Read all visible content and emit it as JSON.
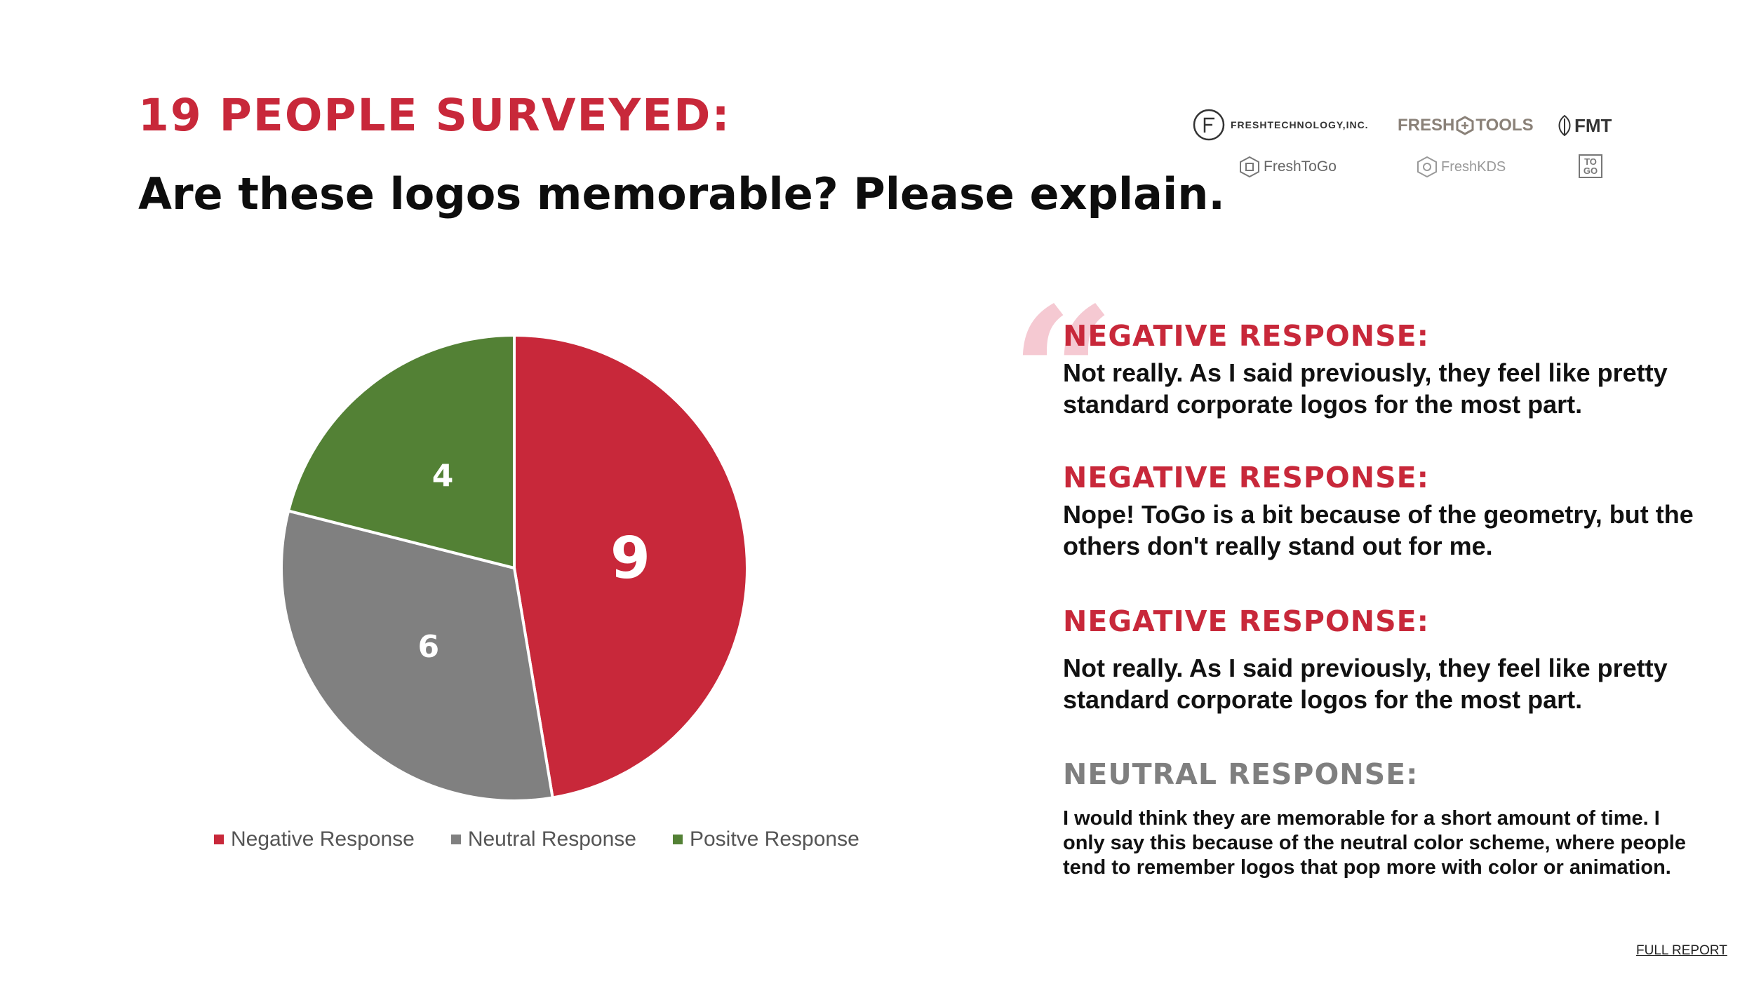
{
  "heading": "19 PEOPLE SURVEYED:",
  "question": "Are these logos memorable? Please explain.",
  "logos": [
    {
      "name": "FRESHTECHNOLOGY,INC."
    },
    {
      "name": "FRESH",
      "name2": "TOOLS"
    },
    {
      "name": "FMT"
    },
    {
      "name": "FreshToGo"
    },
    {
      "name": "FreshKDS"
    },
    {
      "name": "TO",
      "name2": "GO"
    }
  ],
  "chart_data": {
    "type": "pie",
    "title": "",
    "categories": [
      "Negative Response",
      "Neutral Response",
      "Positve Response"
    ],
    "values": [
      9,
      6,
      4
    ],
    "colors": [
      "#c8283a",
      "#808080",
      "#538135"
    ],
    "data_labels": [
      "9",
      "6",
      "4"
    ],
    "legend_position": "bottom"
  },
  "responses": [
    {
      "heading": "NEGATIVE RESPONSE:",
      "text": "Not really. As I said previously, they feel like pretty standard corporate logos for the most part.",
      "color": "#c8283a"
    },
    {
      "heading": "NEGATIVE RESPONSE:",
      "text": "Nope! ToGo is a bit because of the geometry, but the others don't really stand out for me.",
      "color": "#c8283a"
    },
    {
      "heading": "NEGATIVE RESPONSE:",
      "text": "Not really. As I said previously, they feel like pretty standard corporate logos for the most part.",
      "color": "#c8283a"
    },
    {
      "heading": "NEUTRAL RESPONSE:",
      "text": "I would think they are memorable for a short amount of time. I only say this because of the neutral color scheme, where people tend to remember logos that pop more with color or animation.",
      "color": "#7f7f7f"
    }
  ],
  "quote_glyph": "“",
  "full_report_label": "FULL REPORT"
}
